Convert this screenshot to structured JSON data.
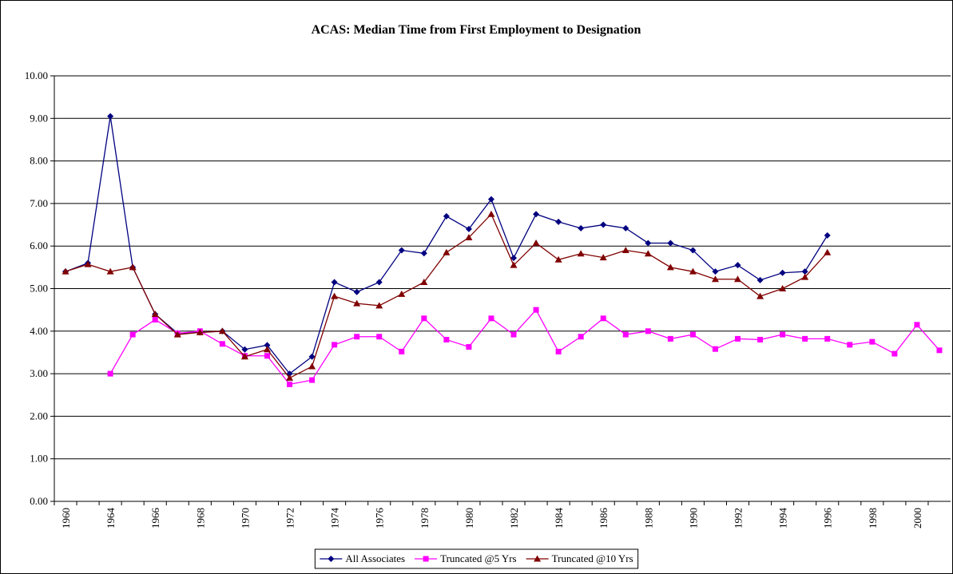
{
  "chart_data": {
    "type": "line",
    "title": "ACAS: Median Time from First Employment to Designation",
    "categories": [
      "1960",
      null,
      "1964",
      null,
      "1966",
      null,
      "1968",
      null,
      "1970",
      null,
      "1972",
      null,
      "1974",
      null,
      "1976",
      null,
      "1978",
      null,
      "1980",
      null,
      "1982",
      null,
      "1984",
      null,
      "1986",
      null,
      "1988",
      null,
      "1990",
      null,
      "1992",
      null,
      "1994",
      null,
      "1996",
      null,
      "1998",
      null,
      "2000",
      null
    ],
    "series": [
      {
        "name": "All Associates",
        "color": "#000080",
        "marker": "diamond",
        "values": [
          5.4,
          5.6,
          9.05,
          5.5,
          4.4,
          3.95,
          3.97,
          4.0,
          3.57,
          3.67,
          3.0,
          3.4,
          5.15,
          4.92,
          5.15,
          5.9,
          5.83,
          6.7,
          6.4,
          7.1,
          5.72,
          6.75,
          6.57,
          6.42,
          6.5,
          6.42,
          6.07,
          6.07,
          5.9,
          5.4,
          5.55,
          5.2,
          5.37,
          5.4,
          6.25,
          null,
          null,
          null,
          null,
          null
        ]
      },
      {
        "name": "Truncated @5 Yrs",
        "color": "#ff00ff",
        "marker": "square",
        "values": [
          null,
          null,
          3.0,
          3.92,
          4.27,
          3.95,
          4.0,
          3.7,
          3.42,
          3.42,
          2.75,
          2.85,
          3.68,
          3.87,
          3.87,
          3.52,
          4.3,
          3.8,
          3.63,
          4.3,
          3.92,
          4.5,
          3.52,
          3.87,
          4.3,
          3.92,
          4.0,
          3.82,
          3.92,
          3.58,
          3.82,
          3.8,
          3.92,
          3.82,
          3.82,
          3.68,
          3.75,
          3.47,
          4.15,
          3.55
        ]
      },
      {
        "name": "Truncated @10 Yrs",
        "color": "#800000",
        "marker": "triangle",
        "values": [
          5.4,
          5.57,
          5.4,
          5.5,
          4.4,
          3.92,
          3.97,
          4.0,
          3.4,
          3.57,
          2.9,
          3.17,
          4.82,
          4.65,
          4.6,
          4.87,
          5.15,
          5.85,
          6.2,
          6.75,
          5.55,
          6.07,
          5.68,
          5.82,
          5.73,
          5.9,
          5.82,
          5.5,
          5.4,
          5.22,
          5.22,
          4.82,
          5.0,
          5.27,
          5.85,
          null,
          null,
          null,
          null,
          null
        ]
      }
    ],
    "ylim": [
      0,
      10
    ],
    "yticks": [
      {
        "value": 0,
        "label": "0.00"
      },
      {
        "value": 1,
        "label": "1.00"
      },
      {
        "value": 2,
        "label": "2.00"
      },
      {
        "value": 3,
        "label": "3.00"
      },
      {
        "value": 4,
        "label": "4.00"
      },
      {
        "value": 5,
        "label": "5.00"
      },
      {
        "value": 6,
        "label": "6.00"
      },
      {
        "value": 7,
        "label": "7.00"
      },
      {
        "value": 8,
        "label": "8.00"
      },
      {
        "value": 9,
        "label": "9.00"
      },
      {
        "value": 10,
        "label": "10.00"
      }
    ],
    "grid": true,
    "legend": "bottom"
  }
}
